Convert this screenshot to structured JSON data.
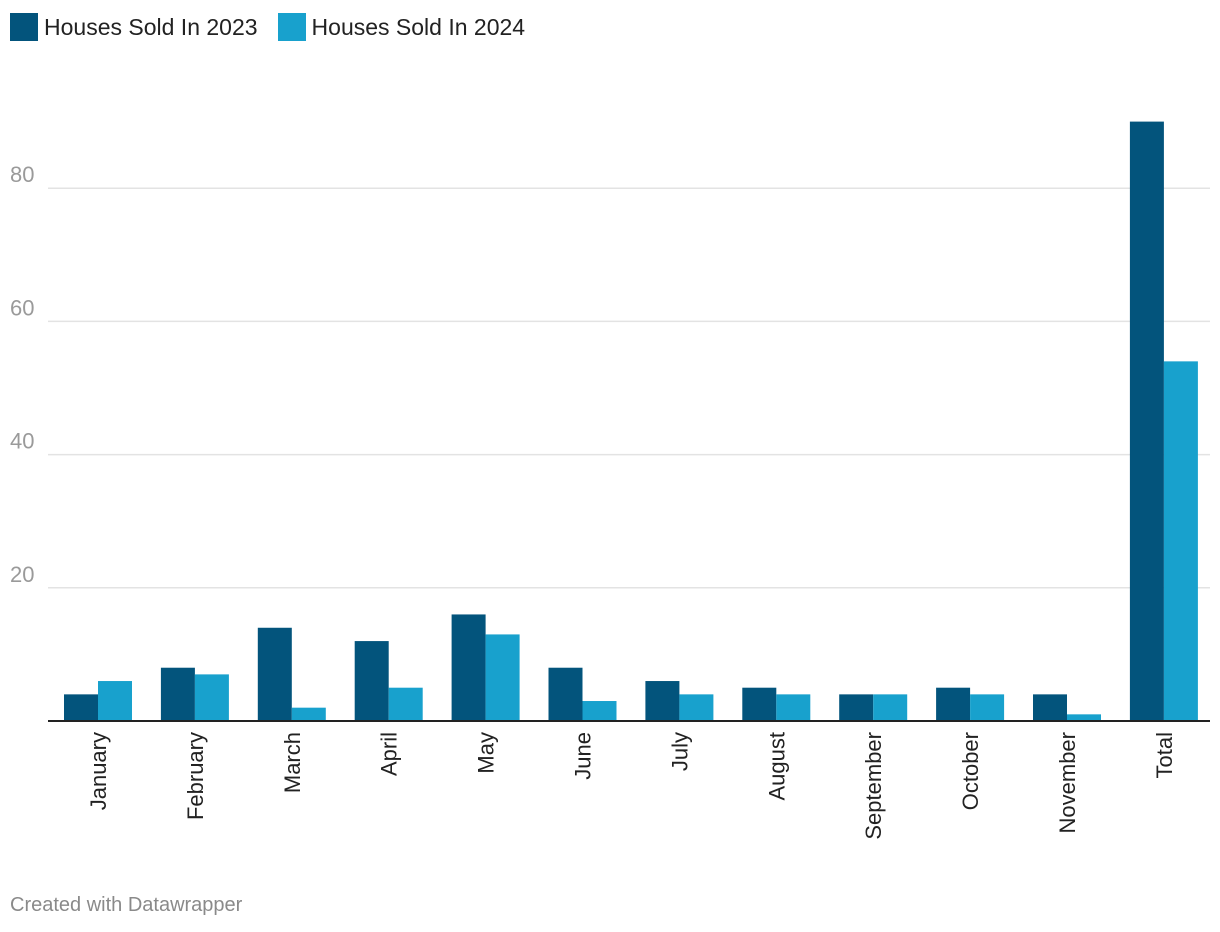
{
  "chart_data": {
    "type": "bar",
    "title": "",
    "xlabel": "",
    "ylabel": "",
    "ylim": [
      0,
      90
    ],
    "yticks": [
      20,
      40,
      60,
      80
    ],
    "grid": true,
    "legend_position": "top-left",
    "categories": [
      "January",
      "February",
      "March",
      "April",
      "May",
      "June",
      "July",
      "August",
      "September",
      "October",
      "November",
      "Total"
    ],
    "series": [
      {
        "name": "Houses Sold In 2023",
        "color": "#03547c",
        "values": [
          4,
          8,
          14,
          12,
          16,
          8,
          6,
          5,
          4,
          5,
          4,
          90
        ]
      },
      {
        "name": "Houses Sold In 2024",
        "color": "#18a1cd",
        "values": [
          6,
          7,
          2,
          5,
          13,
          3,
          4,
          4,
          4,
          4,
          1,
          54
        ]
      }
    ]
  },
  "footer": {
    "credit": "Created with Datawrapper"
  }
}
